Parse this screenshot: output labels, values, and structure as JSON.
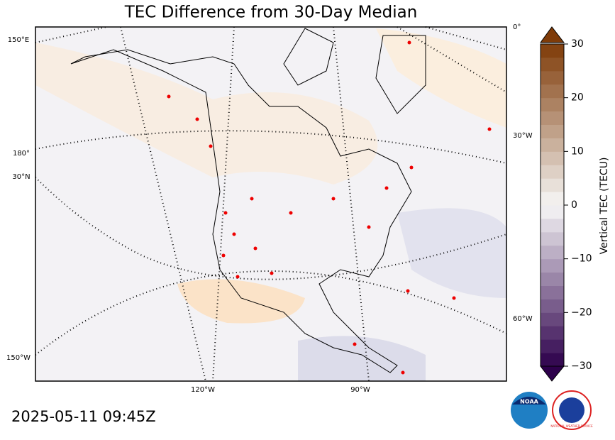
{
  "title": "TEC Difference from 30-Day Median",
  "map": {
    "graticule_labels": [
      "150°E",
      "180°",
      "30°N",
      "150°W",
      "120°W",
      "90°W",
      "0°",
      "30°W",
      "60°W"
    ]
  },
  "colorbar": {
    "label": "Vertical TEC (TECU)",
    "lim": [
      -30,
      30
    ],
    "ticks": [
      30,
      20,
      10,
      0,
      {
        "value": -10,
        "label": "−10"
      },
      {
        "value": -20,
        "label": "−20"
      },
      {
        "value": -30,
        "label": "−30"
      }
    ]
  },
  "timestamp": "2025-05-11 09:45Z",
  "logos": [
    "NOAA",
    "NATIONAL WEATHER SERVICE"
  ]
}
